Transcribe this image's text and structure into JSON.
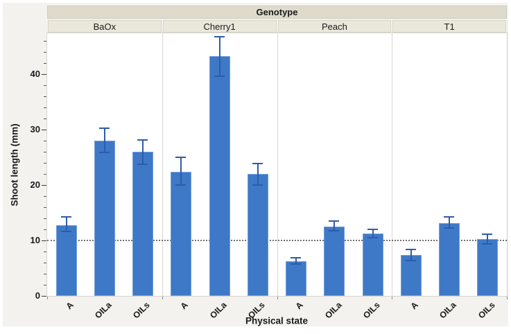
{
  "chart_data": {
    "type": "bar",
    "group_axis_title": "Genotype",
    "xlabel": "Physical state",
    "ylabel": "Shoot length (mm)",
    "categories": [
      "A",
      "OILa",
      "OILs"
    ],
    "groups": [
      {
        "name": "BaOx",
        "values": [
          12.8,
          28.0,
          26.0
        ],
        "error_low": [
          11.6,
          25.9,
          23.8
        ],
        "error_high": [
          14.2,
          30.3,
          28.2
        ]
      },
      {
        "name": "Cherry1",
        "values": [
          22.4,
          43.3,
          22.0
        ],
        "error_low": [
          20.0,
          39.7,
          20.0
        ],
        "error_high": [
          25.0,
          46.8,
          23.9
        ]
      },
      {
        "name": "Peach",
        "values": [
          6.3,
          12.5,
          11.3
        ],
        "error_low": [
          5.8,
          11.7,
          10.5
        ],
        "error_high": [
          6.9,
          13.5,
          12.0
        ]
      },
      {
        "name": "T1",
        "values": [
          7.4,
          13.1,
          10.2
        ],
        "error_low": [
          6.4,
          12.2,
          9.4
        ],
        "error_high": [
          8.4,
          14.3,
          11.1
        ]
      }
    ],
    "ylim": [
      0,
      47.4
    ],
    "yticks": [
      0,
      10,
      20,
      30,
      40
    ],
    "minor_tick_step": 2,
    "reference_line_y": 10,
    "grid": "off",
    "legend": "none"
  },
  "colors": {
    "bar_fill": "#3E79C8",
    "error_bar": "#2E5CA6",
    "genotype_band_bg": "#DEDACC",
    "group_band_bg": "#EAE7DB",
    "panel_bg": "#F3F2EF",
    "plot_bg": "#FFFFFF",
    "plot_border": "#D5D3CC",
    "separator": "#D9D7D1",
    "reference_line": "#6E6E6E",
    "major_tick": "#3A3A3A",
    "minor_tick": "#555555",
    "text": "#1A1A1A"
  }
}
